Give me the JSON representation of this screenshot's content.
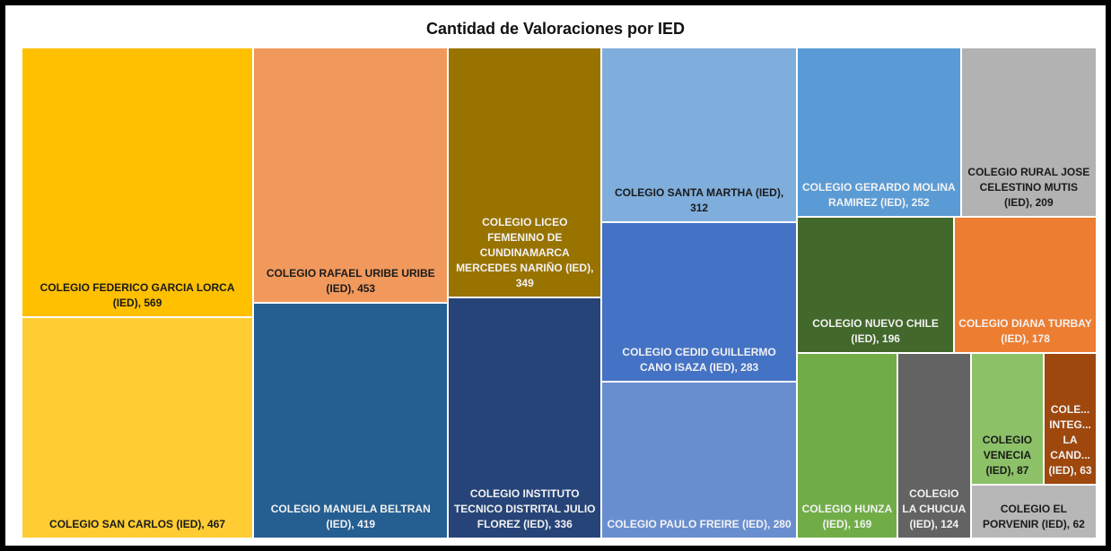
{
  "chart_data": {
    "type": "treemap",
    "title": "Cantidad de Valoraciones por IED",
    "values": [
      569,
      467,
      453,
      419,
      349,
      336,
      312,
      283,
      280,
      252,
      209,
      196,
      178,
      169,
      124,
      87,
      63,
      62
    ],
    "value_labels": [
      "COLEGIO FEDERICO GARCIA LORCA (IED), 569",
      "COLEGIO SAN CARLOS (IED), 467",
      "COLEGIO RAFAEL URIBE URIBE (IED), 453",
      "COLEGIO MANUELA BELTRAN (IED), 419",
      "COLEGIO LICEO FEMENINO DE CUNDINAMARCA MERCEDES NARIÑO (IED), 349",
      "COLEGIO INSTITUTO TECNICO DISTRITAL JULIO FLOREZ (IED), 336",
      "COLEGIO SANTA MARTHA (IED), 312",
      "COLEGIO CEDID GUILLERMO CANO ISAZA (IED), 283",
      "COLEGIO PAULO FREIRE (IED), 280",
      "COLEGIO GERARDO MOLINA RAMIREZ (IED), 252",
      "COLEGIO RURAL JOSE CELESTINO MUTIS (IED), 209",
      "COLEGIO NUEVO CHILE (IED), 196",
      "COLEGIO DIANA TURBAY (IED), 178",
      "COLEGIO HUNZA (IED), 169",
      "COLEGIO LA CHUCUA (IED), 124",
      "COLEGIO VENECIA (IED), 87",
      "COLE... INTEG... LA CAND... (IED), 63",
      "COLEGIO EL PORVENIR (IED), 62"
    ],
    "colors": [
      "#FFC000",
      "#FFCD33",
      "#F1995C",
      "#255E91",
      "#997300",
      "#264478",
      "#7FAEDC",
      "#4472C4",
      "#698ED0",
      "#5B9BD5",
      "#B2B2B2",
      "#43682B",
      "#ED7D31",
      "#70AD47",
      "#636363",
      "#8CC168",
      "#9E480E",
      "#B7B7B7"
    ]
  }
}
